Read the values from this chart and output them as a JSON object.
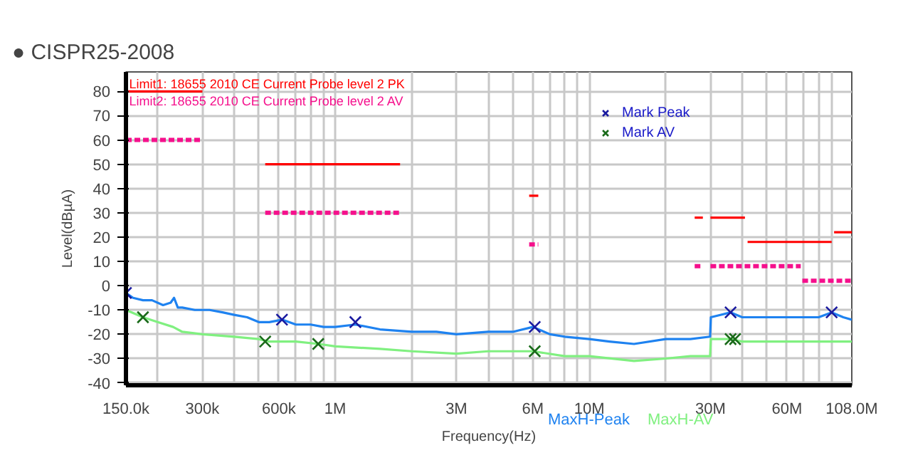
{
  "chart_data": {
    "type": "line",
    "title": "● CISPR25-2008",
    "xlabel": "Frequency(Hz)",
    "ylabel": "Level(dBµA)",
    "log": "x",
    "xlim": [
      150000,
      108000000
    ],
    "ylim": [
      -41,
      88
    ],
    "xticks": [
      {
        "value": 150000,
        "label": "150.0k"
      },
      {
        "value": 200000,
        "label": null
      },
      {
        "value": 300000,
        "label": "300k"
      },
      {
        "value": 400000,
        "label": null
      },
      {
        "value": 500000,
        "label": null
      },
      {
        "value": 600000,
        "label": "600k"
      },
      {
        "value": 700000,
        "label": null
      },
      {
        "value": 800000,
        "label": null
      },
      {
        "value": 900000,
        "label": null
      },
      {
        "value": 1000000,
        "label": "1M"
      },
      {
        "value": 2000000,
        "label": null
      },
      {
        "value": 3000000,
        "label": "3M"
      },
      {
        "value": 4000000,
        "label": null
      },
      {
        "value": 5000000,
        "label": null
      },
      {
        "value": 6000000,
        "label": "6M"
      },
      {
        "value": 7000000,
        "label": null
      },
      {
        "value": 8000000,
        "label": null
      },
      {
        "value": 9000000,
        "label": null
      },
      {
        "value": 10000000,
        "label": "10M"
      },
      {
        "value": 20000000,
        "label": null
      },
      {
        "value": 30000000,
        "label": "30M"
      },
      {
        "value": 40000000,
        "label": null
      },
      {
        "value": 50000000,
        "label": null
      },
      {
        "value": 60000000,
        "label": "60M"
      },
      {
        "value": 70000000,
        "label": null
      },
      {
        "value": 80000000,
        "label": null
      },
      {
        "value": 90000000,
        "label": null
      },
      {
        "value": 108000000,
        "label": "108.0M"
      }
    ],
    "yticks": [
      -40,
      -30,
      -20,
      -10,
      0,
      10,
      20,
      30,
      40,
      50,
      60,
      70,
      80
    ],
    "grid": true,
    "legend": "top right",
    "series": [
      {
        "name": "Limit1: 18655 2010 CE Current Probe level 2 PK",
        "line_style": "solid",
        "color": "#ff0000",
        "x": [
          150000,
          300000,
          400000,
          530000,
          1800000,
          3000000,
          5800000,
          6300000,
          10000000,
          26000000,
          28000000,
          29000000,
          30000000,
          41000000,
          41500000,
          42000000,
          90000000,
          91000000,
          92000000,
          108000000
        ],
        "values": [
          80,
          80,
          null,
          50,
          50,
          null,
          37,
          37,
          null,
          28,
          28,
          null,
          28,
          28,
          null,
          18,
          18,
          null,
          22,
          22
        ]
      },
      {
        "name": "Limit2: 18655 2010 CE Current Probe level 2 AV",
        "line_style": "dashed",
        "color": "#f5108c",
        "x": [
          150000,
          300000,
          400000,
          530000,
          1800000,
          3000000,
          5800000,
          6300000,
          10000000,
          26000000,
          28000000,
          29000000,
          30000000,
          68000000,
          68500000,
          69000000,
          108000000
        ],
        "values": [
          60,
          60,
          null,
          30,
          30,
          null,
          17,
          17,
          null,
          8,
          8,
          null,
          8,
          8,
          null,
          2,
          2
        ]
      },
      {
        "name": "MaxH-Peak",
        "line_style": "solid",
        "color": "#1e82f0",
        "x": [
          150000,
          160000,
          175000,
          190000,
          210000,
          225000,
          232000,
          240000,
          250000,
          280000,
          320000,
          360000,
          400000,
          450000,
          500000,
          550000,
          620000,
          700000,
          800000,
          900000,
          1000000,
          1200000,
          1500000,
          2000000,
          2500000,
          3000000,
          4000000,
          5000000,
          6000000,
          7000000,
          8000000,
          10000000,
          12000000,
          15000000,
          20000000,
          25000000,
          29900000,
          30100000,
          36000000,
          40000000,
          50000000,
          60000000,
          70000000,
          80000000,
          90000000,
          100000000,
          108000000
        ],
        "values": [
          -3,
          -5,
          -6,
          -6,
          -8,
          -7,
          -5,
          -9,
          -9,
          -10,
          -10,
          -11,
          -12,
          -13,
          -15,
          -15,
          -14,
          -16,
          -16,
          -17,
          -17,
          -16,
          -18,
          -19,
          -19,
          -20,
          -19,
          -19,
          -17,
          -20,
          -21,
          -22,
          -23,
          -24,
          -22,
          -22,
          -21,
          -13,
          -11,
          -13,
          -13,
          -13,
          -13,
          -13,
          -11,
          -13,
          -14
        ]
      },
      {
        "name": "MaxH-AV",
        "line_style": "solid",
        "color": "#80f080",
        "x": [
          150000,
          175000,
          200000,
          230000,
          250000,
          300000,
          400000,
          500000,
          550000,
          700000,
          860000,
          1000000,
          1500000,
          2000000,
          3000000,
          4000000,
          6000000,
          8000000,
          10000000,
          15000000,
          20000000,
          25000000,
          29900000,
          30100000,
          36000000,
          40000000,
          60000000,
          80000000,
          108000000
        ],
        "values": [
          -10,
          -13,
          -15,
          -17,
          -19,
          -20,
          -21,
          -22,
          -23,
          -23,
          -24,
          -25,
          -26,
          -27,
          -28,
          -27,
          -27,
          -29,
          -29,
          -31,
          -30,
          -29,
          -29,
          -22,
          -22,
          -23,
          -23,
          -23,
          -23
        ]
      },
      {
        "name": "Mark Peak",
        "type": "scatter",
        "marker": "cross",
        "color": "#1a1aa0",
        "x": [
          150000,
          617000,
          1200000,
          6100000,
          36000000,
          90000000
        ],
        "values": [
          -3,
          -14,
          -15,
          -17,
          -11,
          -11
        ]
      },
      {
        "name": "Mark AV",
        "type": "scatter",
        "marker": "cross",
        "color": "#1a6b1a",
        "x": [
          175000,
          530000,
          857000,
          6100000,
          36000000,
          37500000
        ],
        "values": [
          -13,
          -23,
          -24,
          -27,
          -22,
          -22
        ]
      }
    ]
  }
}
